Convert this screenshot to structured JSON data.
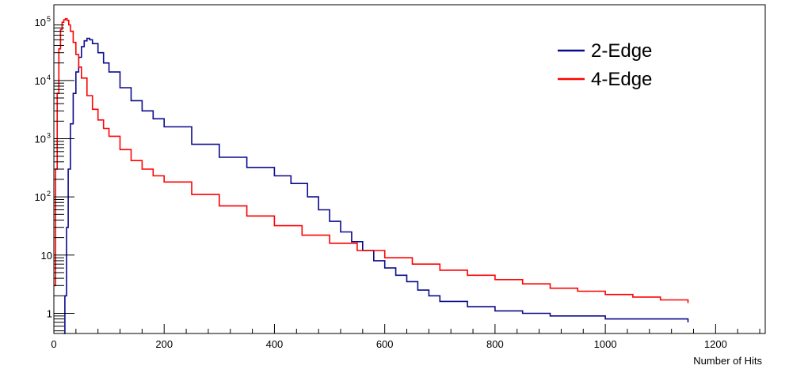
{
  "chart_data": {
    "type": "line",
    "title": "",
    "xlabel": "Number of Hits",
    "ylabel": "",
    "xlim": [
      0,
      1290
    ],
    "ylim": [
      0.45,
      200000
    ],
    "yscale": "log",
    "grid": false,
    "legend_position": "top-right",
    "x_ticks": [
      0,
      200,
      400,
      600,
      800,
      1000,
      1200
    ],
    "y_ticks": [
      {
        "value": 1,
        "label": "1",
        "sup": ""
      },
      {
        "value": 10,
        "label": "10",
        "sup": ""
      },
      {
        "value": 100,
        "label": "10",
        "sup": "2"
      },
      {
        "value": 1000,
        "label": "10",
        "sup": "3"
      },
      {
        "value": 10000,
        "label": "10",
        "sup": "4"
      },
      {
        "value": 100000,
        "label": "10",
        "sup": "5"
      }
    ],
    "series": [
      {
        "name": "2-Edge",
        "color": "#0a0a8c",
        "x": [
          18,
          20,
          23,
          26,
          30,
          35,
          40,
          45,
          50,
          55,
          60,
          65,
          70,
          80,
          90,
          100,
          120,
          140,
          160,
          180,
          200,
          250,
          300,
          350,
          400,
          430,
          460,
          480,
          500,
          520,
          540,
          560,
          580,
          600,
          620,
          640,
          660,
          680,
          700,
          750,
          800,
          850,
          900,
          950,
          1000,
          1050,
          1100,
          1150
        ],
        "y": [
          0,
          2,
          30,
          300,
          1800,
          6000,
          14000,
          25000,
          38000,
          48000,
          53000,
          50000,
          43000,
          30000,
          20000,
          14000,
          7500,
          4500,
          3000,
          2200,
          1600,
          800,
          480,
          320,
          230,
          170,
          100,
          60,
          38,
          25,
          17,
          12,
          8,
          6,
          4.5,
          3.5,
          2.5,
          2,
          1.6,
          1.3,
          1.1,
          1,
          0.9,
          0.9,
          0.8,
          0.8,
          0.8,
          0.7
        ]
      },
      {
        "name": "4-Edge",
        "color": "#ff0000",
        "x": [
          0,
          3,
          6,
          9,
          12,
          15,
          18,
          21,
          24,
          27,
          30,
          35,
          40,
          45,
          50,
          60,
          70,
          80,
          90,
          100,
          120,
          140,
          160,
          180,
          200,
          250,
          300,
          350,
          400,
          450,
          500,
          550,
          600,
          650,
          700,
          750,
          800,
          850,
          900,
          950,
          1000,
          1050,
          1100,
          1150
        ],
        "y": [
          3,
          300,
          6000,
          35000,
          75000,
          100000,
          110000,
          115000,
          108000,
          90000,
          70000,
          45000,
          28000,
          17000,
          11000,
          5500,
          3200,
          2100,
          1500,
          1100,
          650,
          420,
          300,
          230,
          180,
          110,
          70,
          47,
          32,
          22,
          16,
          12,
          9,
          7,
          5.5,
          4.5,
          3.8,
          3.2,
          2.7,
          2.4,
          2.1,
          1.9,
          1.7,
          1.5
        ]
      }
    ]
  }
}
